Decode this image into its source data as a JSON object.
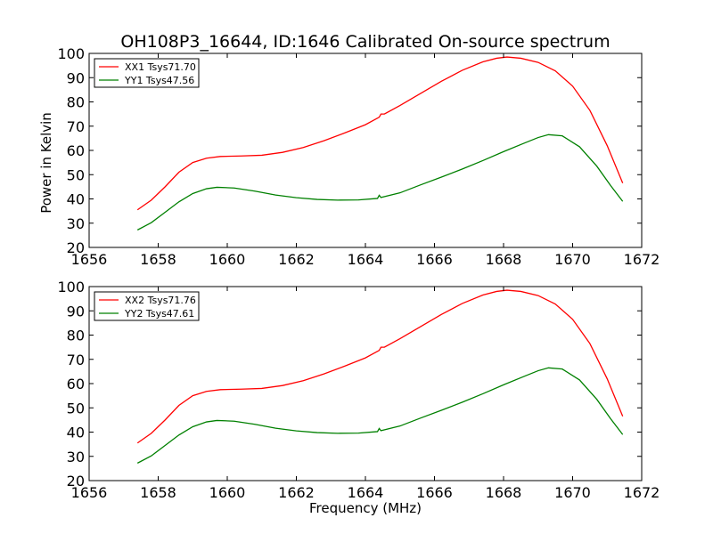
{
  "figure": {
    "title": "OH108P3_16644, ID:1646 Calibrated On-source spectrum",
    "xlabel": "Frequency (MHz)",
    "ylabel": "Power in Kelvin"
  },
  "colors": {
    "red": "#ff0000",
    "green": "#008000"
  },
  "chart_data": [
    {
      "type": "line",
      "title": "OH108P3_16644, ID:1646 Calibrated On-source spectrum",
      "xlabel": "",
      "ylabel": "Power in Kelvin",
      "xlim": [
        1656,
        1672
      ],
      "ylim": [
        20,
        100
      ],
      "xticks": [
        "1656",
        "1658",
        "1660",
        "1662",
        "1664",
        "1666",
        "1668",
        "1670",
        "1672"
      ],
      "yticks": [
        "20",
        "30",
        "40",
        "50",
        "60",
        "70",
        "80",
        "90",
        "100"
      ],
      "grid": false,
      "legend_position": "top-left",
      "series": [
        {
          "name": "XX1 Tsys71.70",
          "color": "#ff0000",
          "points": [
            [
              1657.4,
              35.5
            ],
            [
              1657.8,
              39.5
            ],
            [
              1658.2,
              45
            ],
            [
              1658.6,
              51
            ],
            [
              1659.0,
              55
            ],
            [
              1659.4,
              56.8
            ],
            [
              1659.8,
              57.5
            ],
            [
              1660.4,
              57.7
            ],
            [
              1661.0,
              58.0
            ],
            [
              1661.6,
              59.2
            ],
            [
              1662.2,
              61.2
            ],
            [
              1662.8,
              64.0
            ],
            [
              1663.4,
              67.2
            ],
            [
              1664.0,
              70.6
            ],
            [
              1664.4,
              73.7
            ],
            [
              1664.45,
              75.0
            ],
            [
              1664.55,
              75.0
            ],
            [
              1665.0,
              78.5
            ],
            [
              1665.6,
              83.5
            ],
            [
              1666.2,
              88.5
            ],
            [
              1666.8,
              93.0
            ],
            [
              1667.4,
              96.5
            ],
            [
              1667.8,
              98.0
            ],
            [
              1668.1,
              98.5
            ],
            [
              1668.5,
              98.0
            ],
            [
              1669.0,
              96.3
            ],
            [
              1669.5,
              92.8
            ],
            [
              1670.0,
              86.5
            ],
            [
              1670.5,
              76.5
            ],
            [
              1671.0,
              62.0
            ],
            [
              1671.45,
              46.5
            ]
          ]
        },
        {
          "name": "YY1 Tsys47.56",
          "color": "#008000",
          "points": [
            [
              1657.4,
              27.2
            ],
            [
              1657.8,
              30.2
            ],
            [
              1658.2,
              34.5
            ],
            [
              1658.6,
              38.8
            ],
            [
              1659.0,
              42.2
            ],
            [
              1659.4,
              44.2
            ],
            [
              1659.7,
              44.8
            ],
            [
              1660.2,
              44.5
            ],
            [
              1660.8,
              43.2
            ],
            [
              1661.4,
              41.6
            ],
            [
              1662.0,
              40.5
            ],
            [
              1662.6,
              39.8
            ],
            [
              1663.2,
              39.5
            ],
            [
              1663.8,
              39.6
            ],
            [
              1664.35,
              40.2
            ],
            [
              1664.4,
              41.5
            ],
            [
              1664.45,
              40.6
            ],
            [
              1665.0,
              42.5
            ],
            [
              1665.6,
              45.8
            ],
            [
              1666.2,
              49.0
            ],
            [
              1666.8,
              52.3
            ],
            [
              1667.4,
              55.8
            ],
            [
              1668.0,
              59.5
            ],
            [
              1668.6,
              63.0
            ],
            [
              1669.0,
              65.3
            ],
            [
              1669.3,
              66.5
            ],
            [
              1669.7,
              66.0
            ],
            [
              1670.2,
              61.5
            ],
            [
              1670.7,
              53.5
            ],
            [
              1671.1,
              45.5
            ],
            [
              1671.45,
              39.0
            ]
          ]
        }
      ]
    },
    {
      "type": "line",
      "title": "",
      "xlabel": "Frequency (MHz)",
      "ylabel": "",
      "xlim": [
        1656,
        1672
      ],
      "ylim": [
        20,
        100
      ],
      "xticks": [
        "1656",
        "1658",
        "1660",
        "1662",
        "1664",
        "1666",
        "1668",
        "1670",
        "1672"
      ],
      "yticks": [
        "20",
        "30",
        "40",
        "50",
        "60",
        "70",
        "80",
        "90",
        "100"
      ],
      "grid": false,
      "legend_position": "top-left",
      "series": [
        {
          "name": "XX2 Tsys71.76",
          "color": "#ff0000",
          "points": [
            [
              1657.4,
              35.5
            ],
            [
              1657.8,
              39.5
            ],
            [
              1658.2,
              45
            ],
            [
              1658.6,
              51
            ],
            [
              1659.0,
              55
            ],
            [
              1659.4,
              56.8
            ],
            [
              1659.8,
              57.5
            ],
            [
              1660.4,
              57.7
            ],
            [
              1661.0,
              58.0
            ],
            [
              1661.6,
              59.2
            ],
            [
              1662.2,
              61.2
            ],
            [
              1662.8,
              64.0
            ],
            [
              1663.4,
              67.2
            ],
            [
              1664.0,
              70.6
            ],
            [
              1664.4,
              73.7
            ],
            [
              1664.45,
              75.0
            ],
            [
              1664.55,
              75.0
            ],
            [
              1665.0,
              78.5
            ],
            [
              1665.6,
              83.5
            ],
            [
              1666.2,
              88.5
            ],
            [
              1666.8,
              93.0
            ],
            [
              1667.4,
              96.5
            ],
            [
              1667.8,
              98.0
            ],
            [
              1668.1,
              98.5
            ],
            [
              1668.5,
              98.0
            ],
            [
              1669.0,
              96.3
            ],
            [
              1669.5,
              92.8
            ],
            [
              1670.0,
              86.5
            ],
            [
              1670.5,
              76.5
            ],
            [
              1671.0,
              62.0
            ],
            [
              1671.45,
              46.5
            ]
          ]
        },
        {
          "name": "YY2 Tsys47.61",
          "color": "#008000",
          "points": [
            [
              1657.4,
              27.2
            ],
            [
              1657.8,
              30.2
            ],
            [
              1658.2,
              34.5
            ],
            [
              1658.6,
              38.8
            ],
            [
              1659.0,
              42.2
            ],
            [
              1659.4,
              44.2
            ],
            [
              1659.7,
              44.8
            ],
            [
              1660.2,
              44.5
            ],
            [
              1660.8,
              43.2
            ],
            [
              1661.4,
              41.6
            ],
            [
              1662.0,
              40.5
            ],
            [
              1662.6,
              39.8
            ],
            [
              1663.2,
              39.5
            ],
            [
              1663.8,
              39.6
            ],
            [
              1664.35,
              40.2
            ],
            [
              1664.4,
              41.5
            ],
            [
              1664.45,
              40.6
            ],
            [
              1665.0,
              42.5
            ],
            [
              1665.6,
              45.8
            ],
            [
              1666.2,
              49.0
            ],
            [
              1666.8,
              52.3
            ],
            [
              1667.4,
              55.8
            ],
            [
              1668.0,
              59.5
            ],
            [
              1668.6,
              63.0
            ],
            [
              1669.0,
              65.3
            ],
            [
              1669.3,
              66.5
            ],
            [
              1669.7,
              66.0
            ],
            [
              1670.2,
              61.5
            ],
            [
              1670.7,
              53.5
            ],
            [
              1671.1,
              45.5
            ],
            [
              1671.45,
              39.0
            ]
          ]
        }
      ]
    }
  ]
}
